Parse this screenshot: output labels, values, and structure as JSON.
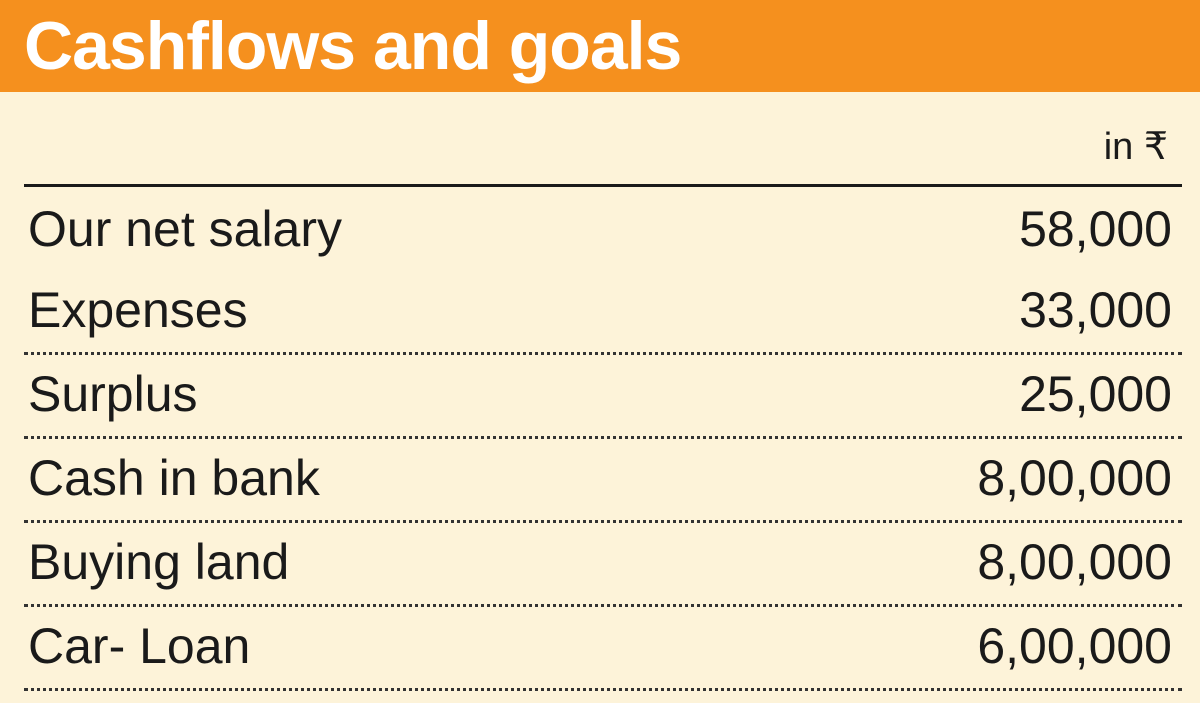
{
  "chart_data": {
    "type": "table",
    "title": "Cashflows and goals",
    "unit": "in ₹",
    "rows": [
      {
        "label": "Our net salary",
        "value": "58,000"
      },
      {
        "label": "Expenses",
        "value": "33,000"
      },
      {
        "label": "Surplus",
        "value": "25,000"
      },
      {
        "label": "Cash in bank",
        "value": "8,00,000"
      },
      {
        "label": "Buying land",
        "value": "8,00,000"
      },
      {
        "label": "Car- Loan",
        "value": "6,00,000"
      }
    ]
  },
  "colors": {
    "header_background": "#f5901e",
    "page_background": "#fdf3d9",
    "text": "#1a1a1a"
  }
}
